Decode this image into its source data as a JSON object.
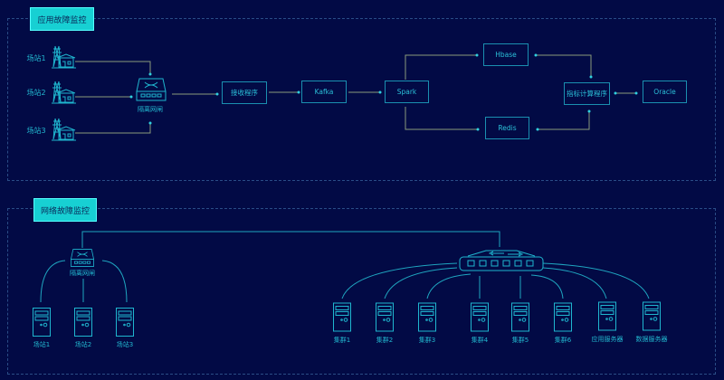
{
  "app_fault": {
    "title": "应用故障监控",
    "stations": [
      "场站1",
      "场站2",
      "场站3"
    ],
    "gateway": "隔离网闸",
    "receiver": "接收程序",
    "kafka": "Kafka",
    "spark": "Spark",
    "hbase": "Hbase",
    "redis": "Redis",
    "calc": "指标计算程序",
    "oracle": "Oracle"
  },
  "net_fault": {
    "title": "网络故障监控",
    "gateway": "隔离网闸",
    "stations": [
      "场站1",
      "场站2",
      "场站3"
    ],
    "servers": [
      "集群1",
      "集群2",
      "集群3",
      "集群4",
      "集群5",
      "集群6",
      "应用服务器",
      "数据服务器"
    ]
  },
  "colors": {
    "background": "#020a45",
    "accent": "#17d0d3",
    "line": "#1fa6c0"
  }
}
